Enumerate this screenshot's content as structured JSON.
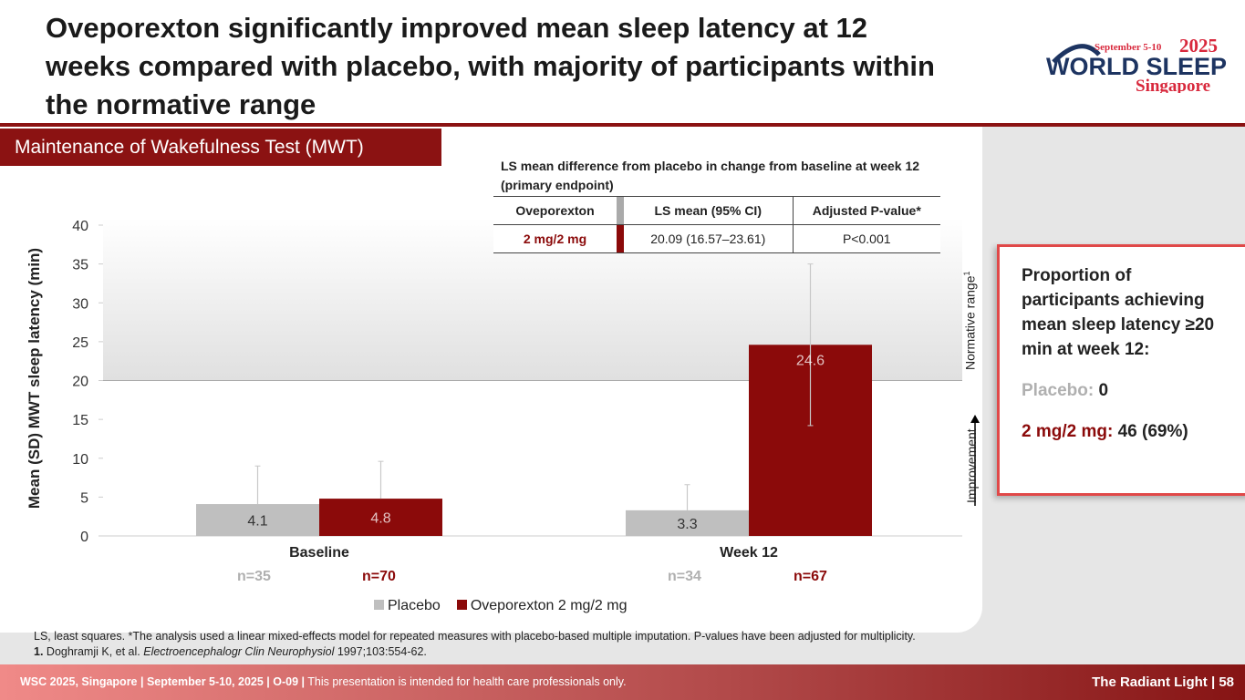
{
  "title": "Oveporexton significantly improved mean sleep latency at 12 weeks compared with placebo, with majority of participants within the normative range",
  "logo": {
    "dates": "September 5-10",
    "year": "2025",
    "name": "WORLD SLEEP",
    "city": "Singapore"
  },
  "tab": "Maintenance of Wakefulness Test (MWT)",
  "table": {
    "caption": "LS mean difference from placebo in change from baseline at week 12 (primary endpoint)",
    "headers": [
      "Oveporexton",
      "LS mean (95% CI)",
      "Adjusted P-value*"
    ],
    "row": [
      "2 mg/2 mg",
      "20.09 (16.57–23.61)",
      "P<0.001"
    ]
  },
  "annotations": {
    "normative": "Normative range",
    "normative_sup": "1",
    "improvement": "Improvement"
  },
  "box": {
    "heading": "Proportion of participants achieving mean sleep latency ≥20 min at week 12:",
    "placebo_label": "Placebo:",
    "placebo_value": "0",
    "dose_label": "2 mg/2 mg:",
    "dose_value": "46 (69%)"
  },
  "n_labels": [
    "n=35",
    "n=70",
    "n=34",
    "n=67"
  ],
  "chart_data": {
    "type": "bar",
    "ylabel": "Mean (SD) MWT sleep latency (min)",
    "ylim": [
      0,
      40
    ],
    "yticks": [
      "0",
      "5",
      "10",
      "15",
      "20",
      "25",
      "30",
      "35",
      "40"
    ],
    "categories": [
      "Baseline",
      "Week 12"
    ],
    "normative_range": [
      20,
      40
    ],
    "series": [
      {
        "name": "Placebo",
        "color": "#bfbfbf",
        "values": [
          4.1,
          3.3
        ],
        "labels": [
          "4.1",
          "3.3"
        ],
        "err_upper": [
          9.0,
          6.6
        ]
      },
      {
        "name": "Oveporexton 2 mg/2 mg",
        "color": "#8b0a0a",
        "values": [
          4.8,
          24.6
        ],
        "labels": [
          "4.8",
          "24.6"
        ],
        "err_upper": [
          9.6,
          35.0
        ],
        "err_lower": [
          null,
          14.2
        ]
      }
    ]
  },
  "footnote": {
    "line1": "LS, least squares. *The analysis used a linear mixed-effects model for repeated measures with placebo-based multiple imputation. P-values have been adjusted for multiplicity.",
    "ref_num": "1.",
    "ref_authors": "Doghramji K, et al.",
    "ref_journal": "Electroencephalogr Clin Neurophysiol",
    "ref_rest": "1997;103:554-62."
  },
  "footer": {
    "left_bold": "WSC 2025, Singapore | September 5-10, 2025 | O-09 |",
    "left_text": "This presentation is intended for health care professionals only.",
    "right": "The Radiant Light | 58"
  }
}
